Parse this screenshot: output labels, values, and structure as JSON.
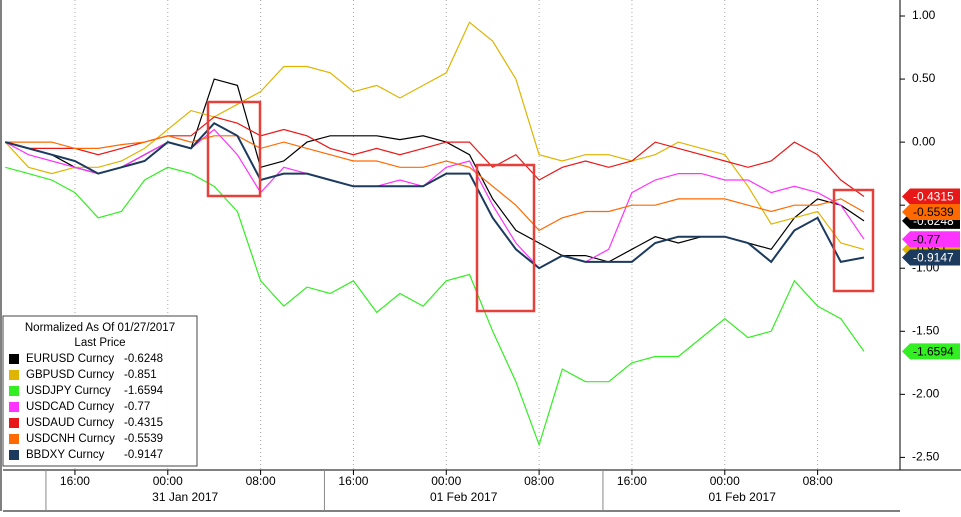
{
  "chart_data": {
    "type": "line",
    "legend_title": "Normalized As Of 01/27/2017",
    "legend_subtitle": "Last Price",
    "x": [
      -6,
      -4,
      -2,
      0,
      2,
      4,
      6,
      8,
      10,
      12,
      14,
      16,
      18,
      20,
      22,
      24,
      26,
      28,
      30,
      32,
      34,
      36,
      38,
      40,
      42,
      44,
      46,
      48,
      50,
      52,
      54,
      56,
      58,
      60,
      62,
      64,
      66,
      68
    ],
    "xlim": [
      -6.2,
      71.1
    ],
    "xticks": [
      {
        "value": 0,
        "label": "16:00"
      },
      {
        "value": 8,
        "label": "00:00"
      },
      {
        "value": 16,
        "label": "08:00"
      },
      {
        "value": 24,
        "label": "16:00"
      },
      {
        "value": 32,
        "label": "00:00"
      },
      {
        "value": 40,
        "label": "08:00"
      },
      {
        "value": 48,
        "label": "16:00"
      },
      {
        "value": 56,
        "label": "00:00"
      },
      {
        "value": 64,
        "label": "08:00"
      }
    ],
    "date_ticks": [
      {
        "value": 9.5,
        "label": "31 Jan 2017"
      },
      {
        "value": 33.5,
        "label": "01 Feb 2017"
      },
      {
        "value": 57.5,
        "label": "01 Feb 2017"
      }
    ],
    "ylim": [
      -2.6,
      1.127
    ],
    "yticks": [
      {
        "value": 1,
        "label": "1.00"
      },
      {
        "value": 0.5,
        "label": "0.50"
      },
      {
        "value": 0,
        "label": "0.00"
      },
      {
        "value": -0.5,
        "label": "-0.50"
      },
      {
        "value": -1,
        "label": "-1.00"
      },
      {
        "value": -1.5,
        "label": "-1.50"
      },
      {
        "value": -2,
        "label": "-2.00"
      },
      {
        "value": -2.5,
        "label": "-2.50"
      }
    ],
    "grid": true,
    "series": [
      {
        "name": "EURUSD Curncy",
        "color": "#000000",
        "values": [
          0,
          -0.05,
          -0.1,
          -0.2,
          -0.25,
          -0.2,
          -0.1,
          0,
          -0.05,
          0.5,
          0.45,
          -0.2,
          -0.15,
          0,
          0.05,
          0.05,
          0.05,
          0.02,
          0.05,
          0,
          -0.1,
          -0.45,
          -0.7,
          -0.8,
          -0.9,
          -0.9,
          -0.95,
          -0.85,
          -0.75,
          -0.8,
          -0.75,
          -0.75,
          -0.8,
          -0.85,
          -0.6,
          -0.45,
          -0.5,
          -0.6248
        ]
      },
      {
        "name": "GBPUSD Curncy",
        "color": "#e0b400",
        "values": [
          0,
          -0.2,
          -0.25,
          -0.2,
          -0.2,
          -0.15,
          -0.05,
          0.1,
          0.25,
          0.2,
          0.3,
          0.4,
          0.6,
          0.6,
          0.55,
          0.4,
          0.45,
          0.35,
          0.45,
          0.55,
          0.95,
          0.8,
          0.5,
          -0.1,
          -0.15,
          -0.1,
          -0.1,
          -0.15,
          -0.1,
          0,
          -0.05,
          -0.1,
          -0.35,
          -0.65,
          -0.6,
          -0.55,
          -0.8,
          -0.851
        ]
      },
      {
        "name": "USDJPY Curncy",
        "color": "#33ee22",
        "values": [
          -0.2,
          -0.25,
          -0.3,
          -0.4,
          -0.6,
          -0.55,
          -0.3,
          -0.2,
          -0.25,
          -0.35,
          -0.55,
          -1.1,
          -1.3,
          -1.15,
          -1.2,
          -1.1,
          -1.35,
          -1.2,
          -1.3,
          -1.1,
          -1.05,
          -1.5,
          -1.9,
          -2.4,
          -1.8,
          -1.9,
          -1.9,
          -1.75,
          -1.7,
          -1.7,
          -1.55,
          -1.4,
          -1.55,
          -1.5,
          -1.1,
          -1.3,
          -1.4,
          -1.6594
        ]
      },
      {
        "name": "USDCAD Curncy",
        "color": "#ff33ff",
        "values": [
          0,
          -0.1,
          -0.15,
          -0.2,
          -0.25,
          -0.2,
          -0.1,
          0,
          -0.05,
          0.1,
          -0.1,
          -0.4,
          -0.2,
          -0.25,
          -0.3,
          -0.35,
          -0.35,
          -0.3,
          -0.35,
          -0.2,
          -0.15,
          -0.5,
          -0.8,
          -1,
          -0.9,
          -0.95,
          -0.85,
          -0.4,
          -0.3,
          -0.25,
          -0.25,
          -0.3,
          -0.3,
          -0.4,
          -0.35,
          -0.4,
          -0.5,
          -0.77
        ]
      },
      {
        "name": "USDAUD Curncy",
        "color": "#e81818",
        "values": [
          0,
          -0.05,
          -0.05,
          -0.05,
          -0.1,
          -0.05,
          0,
          0.05,
          0.05,
          0.2,
          0.15,
          0.05,
          0.1,
          0.05,
          -0.05,
          -0.1,
          -0.05,
          -0.1,
          -0.05,
          0,
          0,
          -0.2,
          -0.1,
          -0.3,
          -0.2,
          -0.15,
          -0.2,
          -0.15,
          0,
          -0.05,
          -0.1,
          -0.15,
          -0.2,
          -0.15,
          0,
          -0.1,
          -0.3,
          -0.4315
        ]
      },
      {
        "name": "USDCNH Curncy",
        "color": "#ff6a00",
        "values": [
          0,
          0,
          0,
          -0.05,
          -0.05,
          -0.02,
          0,
          0.05,
          0,
          0.05,
          0.05,
          -0.05,
          0,
          -0.05,
          -0.1,
          -0.15,
          -0.15,
          -0.2,
          -0.2,
          -0.15,
          -0.2,
          -0.35,
          -0.5,
          -0.7,
          -0.6,
          -0.55,
          -0.55,
          -0.5,
          -0.5,
          -0.45,
          -0.45,
          -0.45,
          -0.5,
          -0.55,
          -0.5,
          -0.5,
          -0.45,
          -0.5539
        ]
      },
      {
        "name": "BBDXY Curncy",
        "color": "#1c3a5e",
        "values": [
          0,
          -0.05,
          -0.1,
          -0.15,
          -0.25,
          -0.2,
          -0.15,
          0,
          -0.05,
          0.15,
          0.05,
          -0.3,
          -0.25,
          -0.25,
          -0.3,
          -0.35,
          -0.35,
          -0.35,
          -0.35,
          -0.25,
          -0.25,
          -0.6,
          -0.85,
          -1,
          -0.9,
          -0.95,
          -0.95,
          -0.95,
          -0.8,
          -0.75,
          -0.75,
          -0.75,
          -0.8,
          -0.95,
          -0.7,
          -0.6,
          -0.95,
          -0.9147
        ]
      }
    ]
  }
}
